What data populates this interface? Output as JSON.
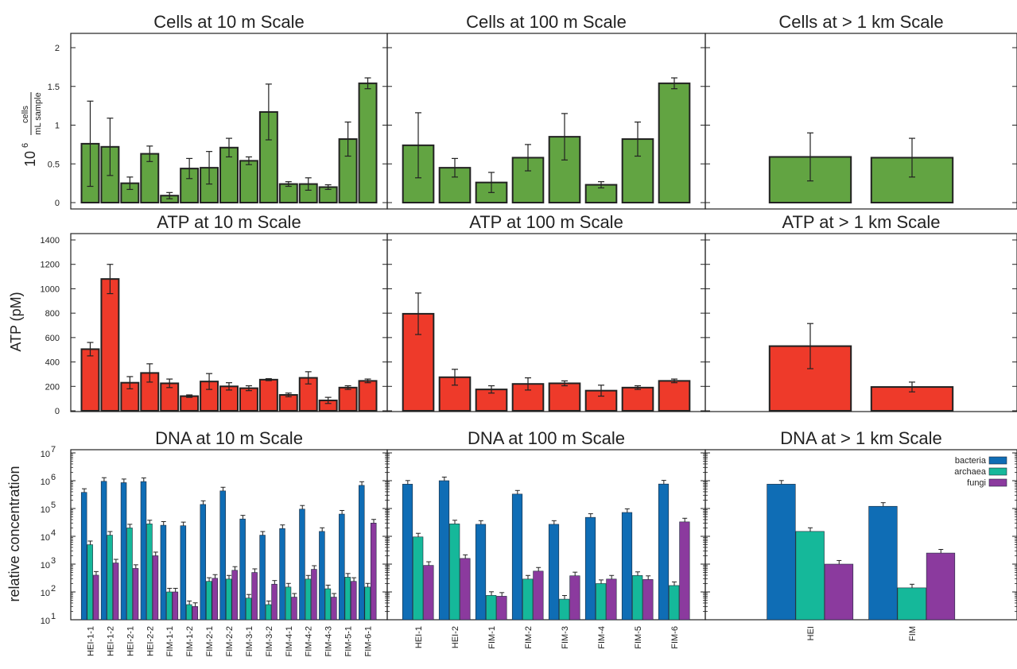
{
  "colors": {
    "cells": "#62a442",
    "atp": "#ee3a2a",
    "bacteria": "#0f6db5",
    "archaea": "#15b89a",
    "fungi": "#8b3a9e",
    "frame": "#222222"
  },
  "ylabels": {
    "cells_prefix": "10",
    "cells_exp": "6",
    "cells_num": "cells",
    "cells_den": "mL sample",
    "atp": "ATP (pM)",
    "dna": "relative concentration"
  },
  "chart_data": [
    {
      "type": "bar",
      "panel": "cells10",
      "title": "Cells at 10 m Scale",
      "categories": [
        "HEI-1-1",
        "HEI-1-2",
        "HEI-2-1",
        "HEI-2-2",
        "FIM-1-1",
        "FIM-1-2",
        "FIM-2-1",
        "FIM-2-2",
        "FIM-3-1",
        "FIM-3-2",
        "FIM-4-1",
        "FIM-4-2",
        "FIM-4-3",
        "FIM-5-1",
        "FIM-6-1"
      ],
      "values": [
        0.76,
        0.72,
        0.25,
        0.63,
        0.09,
        0.44,
        0.45,
        0.71,
        0.54,
        1.17,
        0.24,
        0.24,
        0.2,
        0.82,
        1.54
      ],
      "errors": [
        0.55,
        0.37,
        0.08,
        0.1,
        0.04,
        0.13,
        0.21,
        0.12,
        0.05,
        0.36,
        0.03,
        0.08,
        0.03,
        0.22,
        0.07
      ],
      "ylim": [
        0,
        2.2
      ],
      "yticks": [
        0,
        0.5,
        1,
        1.5,
        2
      ],
      "ytick_labels": [
        "0",
        "0.5",
        "1",
        "1.5",
        "2"
      ]
    },
    {
      "type": "bar",
      "panel": "cells100",
      "title": "Cells at 100 m Scale",
      "categories": [
        "HEI-1",
        "HEI-2",
        "FIM-1",
        "FIM-2",
        "FIM-3",
        "FIM-4",
        "FIM-5",
        "FIM-6"
      ],
      "values": [
        0.74,
        0.45,
        0.26,
        0.58,
        0.85,
        0.23,
        0.82,
        1.54
      ],
      "errors": [
        0.42,
        0.12,
        0.13,
        0.17,
        0.3,
        0.04,
        0.22,
        0.07
      ],
      "ylim": [
        0,
        2.2
      ],
      "yticks": [
        0,
        0.5,
        1,
        1.5,
        2
      ]
    },
    {
      "type": "bar",
      "panel": "cells1km",
      "title": "Cells at  > 1 km Scale",
      "categories": [
        "HEI",
        "FIM"
      ],
      "values": [
        0.59,
        0.58
      ],
      "errors": [
        0.31,
        0.25
      ],
      "ylim": [
        0,
        2.2
      ],
      "yticks": [
        0,
        0.5,
        1,
        1.5,
        2
      ]
    },
    {
      "type": "bar",
      "panel": "atp10",
      "title": "ATP at 10 m Scale",
      "categories": [
        "HEI-1-1",
        "HEI-1-2",
        "HEI-2-1",
        "HEI-2-2",
        "FIM-1-1",
        "FIM-1-2",
        "FIM-2-1",
        "FIM-2-2",
        "FIM-3-1",
        "FIM-3-2",
        "FIM-4-1",
        "FIM-4-2",
        "FIM-4-3",
        "FIM-5-1",
        "FIM-6-1"
      ],
      "values": [
        505,
        1080,
        230,
        310,
        225,
        120,
        240,
        200,
        185,
        255,
        130,
        270,
        85,
        190,
        245
      ],
      "errors": [
        55,
        120,
        50,
        75,
        35,
        10,
        65,
        30,
        20,
        8,
        15,
        50,
        25,
        15,
        15
      ],
      "ylim": [
        0,
        1400
      ],
      "yticks": [
        0,
        200,
        400,
        600,
        800,
        1000,
        1200,
        1400
      ],
      "ytick_labels": [
        "0",
        "200",
        "400",
        "600",
        "800",
        "1000",
        "1200",
        "1400"
      ]
    },
    {
      "type": "bar",
      "panel": "atp100",
      "title": "ATP at 100 m Scale",
      "categories": [
        "HEI-1",
        "HEI-2",
        "FIM-1",
        "FIM-2",
        "FIM-3",
        "FIM-4",
        "FIM-5",
        "FIM-6"
      ],
      "values": [
        795,
        275,
        175,
        220,
        225,
        165,
        190,
        245
      ],
      "errors": [
        170,
        65,
        30,
        50,
        20,
        45,
        15,
        15
      ],
      "ylim": [
        0,
        1400
      ],
      "yticks": [
        0,
        200,
        400,
        600,
        800,
        1000,
        1200,
        1400
      ]
    },
    {
      "type": "bar",
      "panel": "atp1km",
      "title": "ATP at  > 1 km Scale",
      "categories": [
        "HEI",
        "FIM"
      ],
      "values": [
        530,
        195
      ],
      "errors": [
        185,
        40
      ],
      "ylim": [
        0,
        1400
      ],
      "yticks": [
        0,
        200,
        400,
        600,
        800,
        1000,
        1200,
        1400
      ]
    },
    {
      "type": "bar",
      "panel": "dna10",
      "title": "DNA at 10 m Scale",
      "yscale": "log",
      "categories": [
        "HEI-1-1",
        "HEI-1-2",
        "HEI-2-1",
        "HEI-2-2",
        "FIM-1-1",
        "FIM-1-2",
        "FIM-2-1",
        "FIM-2-2",
        "FIM-3-1",
        "FIM-3-2",
        "FIM-4-1",
        "FIM-4-2",
        "FIM-4-3",
        "FIM-5-1",
        "FIM-6-1"
      ],
      "series": [
        {
          "name": "bacteria",
          "values": [
            380000,
            950000,
            850000,
            930000,
            25000,
            24000,
            140000,
            430000,
            42000,
            11000,
            19000,
            95000,
            15000,
            63000,
            680000
          ]
        },
        {
          "name": "archaea",
          "values": [
            5000,
            11000,
            20000,
            28000,
            100,
            35,
            240,
            290,
            60,
            35,
            150,
            290,
            130,
            340,
            150
          ]
        },
        {
          "name": "fungi",
          "values": [
            400,
            1100,
            700,
            2000,
            100,
            30,
            310,
            600,
            500,
            190,
            65,
            650,
            65,
            240,
            30000
          ]
        }
      ],
      "ylim": [
        10,
        10000000
      ],
      "yticks": [
        10,
        100,
        1000,
        10000,
        100000,
        1000000,
        10000000
      ]
    },
    {
      "type": "bar",
      "panel": "dna100",
      "title": "DNA at 100 m Scale",
      "yscale": "log",
      "categories": [
        "HEI-1",
        "HEI-2",
        "FIM-1",
        "FIM-2",
        "FIM-3",
        "FIM-4",
        "FIM-5",
        "FIM-6"
      ],
      "series": [
        {
          "name": "bacteria",
          "values": [
            750000,
            1000000,
            27000,
            330000,
            27000,
            48000,
            72000,
            760000
          ]
        },
        {
          "name": "archaea",
          "values": [
            9500,
            28000,
            75,
            290,
            55,
            200,
            390,
            170
          ]
        },
        {
          "name": "fungi",
          "values": [
            900,
            1600,
            70,
            560,
            380,
            290,
            280,
            33000
          ]
        }
      ],
      "ylim": [
        10,
        10000000
      ],
      "yticks": [
        10,
        100,
        1000,
        10000,
        100000,
        1000000,
        10000000
      ]
    },
    {
      "type": "bar",
      "panel": "dna1km",
      "title": "DNA at  > 1 km Scale",
      "yscale": "log",
      "categories": [
        "HEI",
        "FIM"
      ],
      "series": [
        {
          "name": "bacteria",
          "values": [
            750000,
            120000
          ]
        },
        {
          "name": "archaea",
          "values": [
            15000,
            140
          ]
        },
        {
          "name": "fungi",
          "values": [
            1000,
            2500
          ]
        }
      ],
      "legend": [
        "bacteria",
        "archaea",
        "fungi"
      ],
      "legend_loc": "top-right",
      "ylim": [
        10,
        10000000
      ],
      "yticks": [
        10,
        100,
        1000,
        10000,
        100000,
        1000000,
        10000000
      ]
    }
  ]
}
